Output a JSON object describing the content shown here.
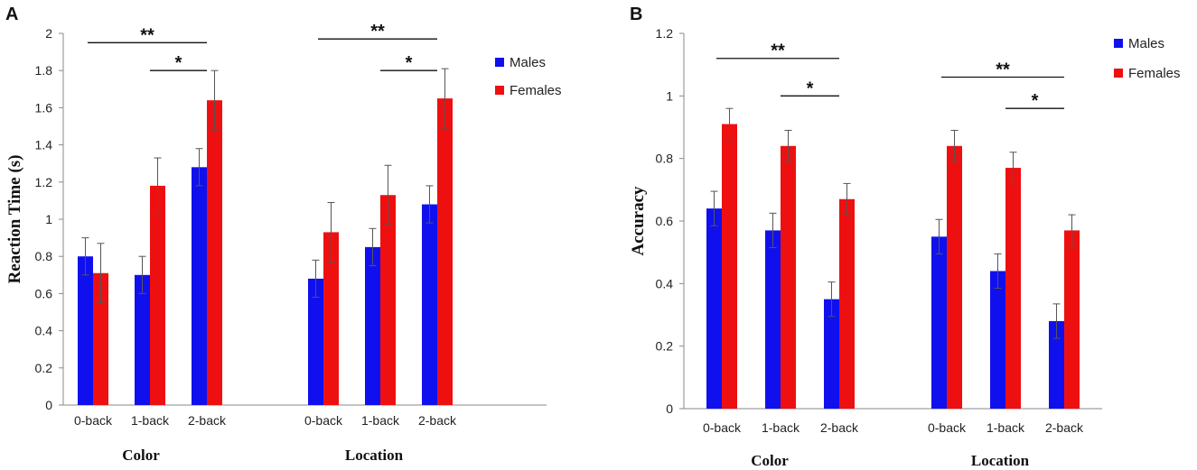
{
  "colors": {
    "males": "#1010ee",
    "females": "#ee1010",
    "axis": "#888888",
    "error": "#555555"
  },
  "chart_data": [
    {
      "panel": "A",
      "type": "bar",
      "ylabel": "Reaction Time (s)",
      "ylim": [
        0,
        2
      ],
      "yticks": [
        "0",
        "0.2",
        "0.4",
        "0.6",
        "0.8",
        "1",
        "1.2",
        "1.4",
        "1.6",
        "1.8",
        "2"
      ],
      "groups": [
        "Color",
        "Location"
      ],
      "categories": [
        "0-back",
        "1-back",
        "2-back"
      ],
      "legend": [
        "Males",
        "Females"
      ],
      "series": [
        {
          "name": "Males",
          "values": [
            [
              0.8,
              0.7,
              1.28
            ],
            [
              0.68,
              0.85,
              1.08
            ]
          ],
          "errors": [
            [
              0.1,
              0.1,
              0.1
            ],
            [
              0.1,
              0.1,
              0.1
            ]
          ]
        },
        {
          "name": "Females",
          "values": [
            [
              0.71,
              1.18,
              1.64
            ],
            [
              0.93,
              1.13,
              1.65
            ]
          ],
          "errors": [
            [
              0.16,
              0.15,
              0.16
            ],
            [
              0.16,
              0.16,
              0.16
            ]
          ]
        }
      ],
      "significance": [
        {
          "group": 0,
          "from": 0,
          "to": 2,
          "label": "**",
          "y": 1.95
        },
        {
          "group": 0,
          "from": 1,
          "to": 2,
          "label": "*",
          "y": 1.8
        },
        {
          "group": 1,
          "from": 0,
          "to": 2,
          "label": "**",
          "y": 1.97
        },
        {
          "group": 1,
          "from": 1,
          "to": 2,
          "label": "*",
          "y": 1.8
        }
      ]
    },
    {
      "panel": "B",
      "type": "bar",
      "ylabel": "Accuracy",
      "ylim": [
        0,
        1.2
      ],
      "yticks": [
        "0",
        "0.2",
        "0.4",
        "0.6",
        "0.8",
        "1",
        "1.2"
      ],
      "groups": [
        "Color",
        "Location"
      ],
      "categories": [
        "0-back",
        "1-back",
        "2-back"
      ],
      "legend": [
        "Males",
        "Females"
      ],
      "series": [
        {
          "name": "Males",
          "values": [
            [
              0.64,
              0.57,
              0.35
            ],
            [
              0.55,
              0.44,
              0.28
            ]
          ],
          "errors": [
            [
              0.055,
              0.055,
              0.055
            ],
            [
              0.055,
              0.055,
              0.055
            ]
          ]
        },
        {
          "name": "Females",
          "values": [
            [
              0.91,
              0.84,
              0.67
            ],
            [
              0.84,
              0.77,
              0.57
            ]
          ],
          "errors": [
            [
              0.05,
              0.05,
              0.05
            ],
            [
              0.05,
              0.05,
              0.05
            ]
          ]
        }
      ],
      "significance": [
        {
          "group": 0,
          "from": 0,
          "to": 2,
          "label": "**",
          "y": 1.12
        },
        {
          "group": 0,
          "from": 1,
          "to": 2,
          "label": "*",
          "y": 1.0
        },
        {
          "group": 1,
          "from": 0,
          "to": 2,
          "label": "**",
          "y": 1.06
        },
        {
          "group": 1,
          "from": 1,
          "to": 2,
          "label": "*",
          "y": 0.96
        }
      ]
    }
  ]
}
